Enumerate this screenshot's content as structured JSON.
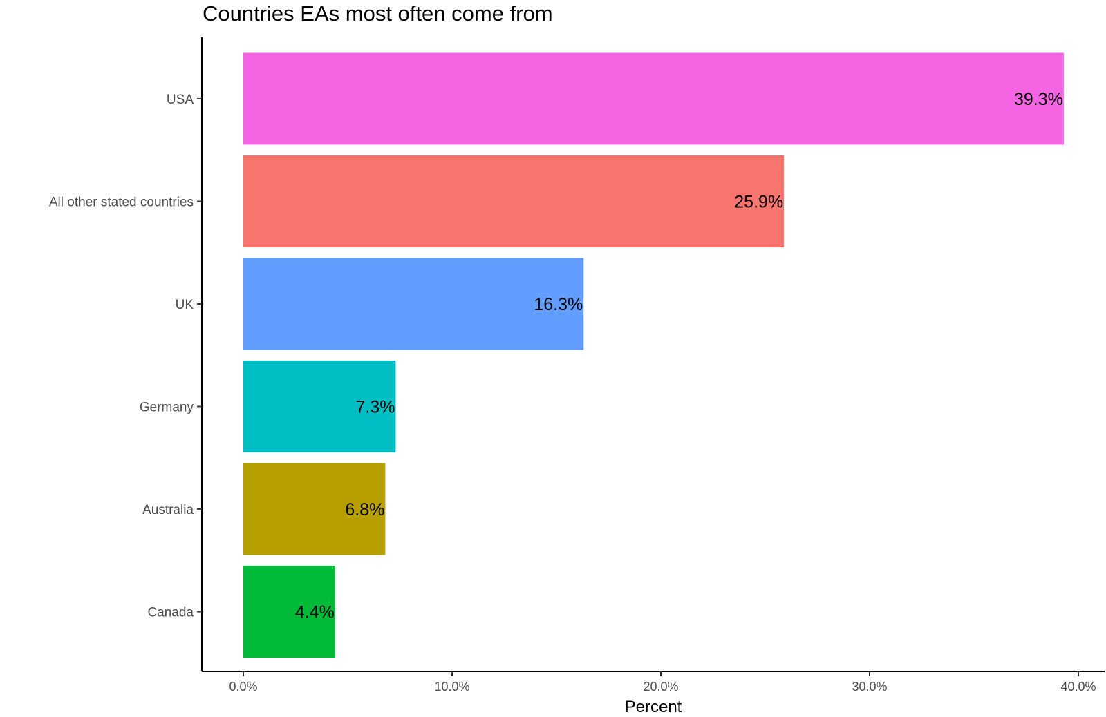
{
  "chart_data": {
    "type": "bar",
    "orientation": "horizontal",
    "title": "Countries EAs most often come from",
    "xlabel": "Percent",
    "ylabel": "",
    "xlim": [
      0,
      40
    ],
    "x_ticks": [
      0,
      10,
      20,
      30,
      40
    ],
    "x_tick_labels": [
      "0.0%",
      "10.0%",
      "20.0%",
      "30.0%",
      "40.0%"
    ],
    "grid": false,
    "legend": "none",
    "categories": [
      "USA",
      "All other stated countries",
      "UK",
      "Germany",
      "Australia",
      "Canada"
    ],
    "values": [
      39.3,
      25.9,
      16.3,
      7.3,
      6.8,
      4.4
    ],
    "data_labels": [
      "39.3%",
      "25.9%",
      "16.3%",
      "7.3%",
      "6.8%",
      "4.4%"
    ],
    "colors": [
      "#F564E3",
      "#F8766D",
      "#619CFF",
      "#00BFC4",
      "#B79F00",
      "#00BA38"
    ]
  }
}
